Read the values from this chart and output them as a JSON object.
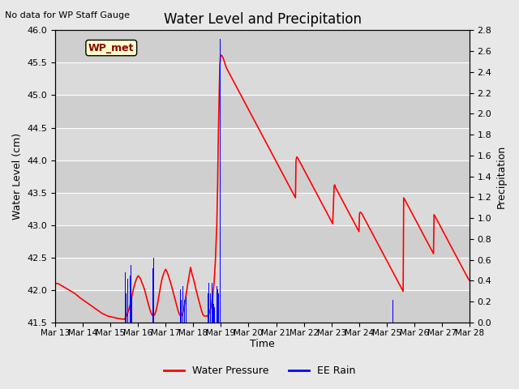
{
  "title": "Water Level and Precipitation",
  "top_left_text": "No data for WP Staff Gauge",
  "ylabel_left": "Water Level (cm)",
  "ylabel_right": "Precipitation",
  "xlabel": "Time",
  "ylim_left": [
    41.5,
    46.0
  ],
  "ylim_right": [
    0.0,
    2.8
  ],
  "yticks_left": [
    41.5,
    42.0,
    42.5,
    43.0,
    43.5,
    44.0,
    44.5,
    45.0,
    45.5,
    46.0
  ],
  "yticks_right": [
    0.0,
    0.2,
    0.4,
    0.6,
    0.8,
    1.0,
    1.2,
    1.4,
    1.6,
    1.8,
    2.0,
    2.2,
    2.4,
    2.6,
    2.8
  ],
  "fig_bg_color": "#e8e8e8",
  "plot_bg_color": "#d4d4d4",
  "legend_label_wp": "Water Pressure",
  "legend_label_rain": "EE Rain",
  "legend_box_color": "#ffffcc",
  "annotation_label": "WP_met",
  "annotation_color": "#8b0000",
  "x_tick_labels": [
    "Mar 13",
    "Mar 14",
    "Mar 15",
    "Mar 16",
    "Mar 17",
    "Mar 18",
    "Mar 19",
    "Mar 20",
    "Mar 21",
    "Mar 22",
    "Mar 23",
    "Mar 24",
    "Mar 25",
    "Mar 26",
    "Mar 27",
    "Mar 28"
  ],
  "x_range": [
    0,
    15
  ],
  "water_pressure": [
    [
      0.0,
      42.1
    ],
    [
      0.1,
      42.1
    ],
    [
      0.3,
      42.05
    ],
    [
      0.5,
      42.0
    ],
    [
      0.7,
      41.95
    ],
    [
      0.9,
      41.88
    ],
    [
      1.1,
      41.82
    ],
    [
      1.3,
      41.76
    ],
    [
      1.5,
      41.7
    ],
    [
      1.7,
      41.64
    ],
    [
      1.9,
      41.6
    ],
    [
      2.1,
      41.58
    ],
    [
      2.3,
      41.56
    ],
    [
      2.5,
      41.55
    ],
    [
      2.55,
      41.58
    ],
    [
      2.6,
      41.62
    ],
    [
      2.65,
      41.68
    ],
    [
      2.7,
      41.75
    ],
    [
      2.75,
      41.85
    ],
    [
      2.8,
      41.96
    ],
    [
      2.85,
      42.05
    ],
    [
      2.9,
      42.12
    ],
    [
      2.95,
      42.18
    ],
    [
      3.0,
      42.22
    ],
    [
      3.05,
      42.2
    ],
    [
      3.1,
      42.16
    ],
    [
      3.15,
      42.1
    ],
    [
      3.2,
      42.05
    ],
    [
      3.25,
      41.98
    ],
    [
      3.3,
      41.9
    ],
    [
      3.35,
      41.82
    ],
    [
      3.4,
      41.74
    ],
    [
      3.45,
      41.67
    ],
    [
      3.5,
      41.62
    ],
    [
      3.55,
      41.6
    ],
    [
      3.6,
      41.62
    ],
    [
      3.65,
      41.68
    ],
    [
      3.7,
      41.78
    ],
    [
      3.75,
      41.9
    ],
    [
      3.8,
      42.02
    ],
    [
      3.85,
      42.14
    ],
    [
      3.9,
      42.22
    ],
    [
      3.95,
      42.28
    ],
    [
      4.0,
      42.32
    ],
    [
      4.05,
      42.28
    ],
    [
      4.1,
      42.22
    ],
    [
      4.15,
      42.15
    ],
    [
      4.2,
      42.08
    ],
    [
      4.25,
      42.0
    ],
    [
      4.3,
      41.92
    ],
    [
      4.35,
      41.84
    ],
    [
      4.4,
      41.76
    ],
    [
      4.45,
      41.68
    ],
    [
      4.5,
      41.62
    ],
    [
      4.55,
      41.6
    ],
    [
      4.6,
      41.62
    ],
    [
      4.65,
      41.7
    ],
    [
      4.7,
      41.82
    ],
    [
      4.75,
      41.96
    ],
    [
      4.8,
      42.1
    ],
    [
      4.85,
      42.22
    ],
    [
      4.88,
      42.3
    ],
    [
      4.9,
      42.35
    ],
    [
      4.92,
      42.32
    ],
    [
      4.95,
      42.25
    ],
    [
      5.0,
      42.18
    ],
    [
      5.05,
      42.1
    ],
    [
      5.1,
      42.0
    ],
    [
      5.15,
      41.92
    ],
    [
      5.2,
      41.84
    ],
    [
      5.25,
      41.76
    ],
    [
      5.3,
      41.68
    ],
    [
      5.35,
      41.62
    ],
    [
      5.4,
      41.6
    ],
    [
      5.45,
      41.6
    ],
    [
      5.5,
      41.6
    ],
    [
      5.55,
      41.62
    ],
    [
      5.6,
      41.67
    ],
    [
      5.65,
      41.76
    ],
    [
      5.7,
      41.9
    ],
    [
      5.75,
      42.1
    ],
    [
      5.8,
      42.45
    ],
    [
      5.85,
      43.0
    ],
    [
      5.88,
      43.6
    ],
    [
      5.9,
      44.2
    ],
    [
      5.92,
      44.7
    ],
    [
      5.94,
      45.1
    ],
    [
      5.96,
      45.45
    ],
    [
      5.98,
      45.58
    ],
    [
      6.0,
      45.62
    ],
    [
      6.05,
      45.6
    ],
    [
      6.1,
      45.55
    ],
    [
      6.15,
      45.48
    ],
    [
      6.2,
      45.42
    ],
    [
      6.25,
      45.38
    ],
    [
      6.3,
      45.34
    ],
    [
      6.35,
      45.3
    ],
    [
      6.4,
      45.26
    ],
    [
      6.45,
      45.22
    ],
    [
      6.5,
      45.18
    ],
    [
      6.55,
      45.14
    ],
    [
      6.6,
      45.1
    ],
    [
      6.65,
      45.06
    ],
    [
      6.7,
      45.02
    ],
    [
      6.75,
      44.98
    ],
    [
      6.8,
      44.94
    ],
    [
      6.85,
      44.9
    ],
    [
      6.9,
      44.86
    ],
    [
      6.95,
      44.82
    ],
    [
      7.0,
      44.78
    ],
    [
      7.05,
      44.74
    ],
    [
      7.1,
      44.7
    ],
    [
      7.15,
      44.66
    ],
    [
      7.2,
      44.62
    ],
    [
      7.25,
      44.58
    ],
    [
      7.3,
      44.54
    ],
    [
      7.35,
      44.5
    ],
    [
      7.4,
      44.46
    ],
    [
      7.45,
      44.42
    ],
    [
      7.5,
      44.38
    ],
    [
      7.55,
      44.34
    ],
    [
      7.6,
      44.3
    ],
    [
      7.65,
      44.26
    ],
    [
      7.7,
      44.22
    ],
    [
      7.75,
      44.18
    ],
    [
      7.8,
      44.14
    ],
    [
      7.85,
      44.1
    ],
    [
      7.9,
      44.06
    ],
    [
      7.95,
      44.02
    ],
    [
      8.0,
      43.98
    ],
    [
      8.05,
      43.94
    ],
    [
      8.1,
      43.9
    ],
    [
      8.15,
      43.86
    ],
    [
      8.2,
      43.82
    ],
    [
      8.25,
      43.78
    ],
    [
      8.3,
      43.74
    ],
    [
      8.35,
      43.7
    ],
    [
      8.4,
      43.66
    ],
    [
      8.45,
      43.62
    ],
    [
      8.5,
      43.58
    ],
    [
      8.55,
      43.54
    ],
    [
      8.6,
      43.5
    ],
    [
      8.65,
      43.46
    ],
    [
      8.7,
      43.42
    ],
    [
      8.72,
      44.0
    ],
    [
      8.75,
      44.05
    ],
    [
      8.8,
      44.02
    ],
    [
      8.85,
      43.98
    ],
    [
      8.9,
      43.94
    ],
    [
      8.95,
      43.9
    ],
    [
      9.0,
      43.86
    ],
    [
      9.05,
      43.82
    ],
    [
      9.1,
      43.78
    ],
    [
      9.15,
      43.74
    ],
    [
      9.2,
      43.7
    ],
    [
      9.25,
      43.66
    ],
    [
      9.3,
      43.62
    ],
    [
      9.35,
      43.58
    ],
    [
      9.4,
      43.54
    ],
    [
      9.45,
      43.5
    ],
    [
      9.5,
      43.46
    ],
    [
      9.55,
      43.42
    ],
    [
      9.6,
      43.38
    ],
    [
      9.65,
      43.34
    ],
    [
      9.7,
      43.3
    ],
    [
      9.75,
      43.26
    ],
    [
      9.8,
      43.22
    ],
    [
      9.85,
      43.18
    ],
    [
      9.9,
      43.14
    ],
    [
      9.95,
      43.1
    ],
    [
      10.0,
      43.06
    ],
    [
      10.05,
      43.02
    ],
    [
      10.1,
      43.6
    ],
    [
      10.12,
      43.62
    ],
    [
      10.15,
      43.58
    ],
    [
      10.2,
      43.54
    ],
    [
      10.25,
      43.5
    ],
    [
      10.3,
      43.46
    ],
    [
      10.35,
      43.42
    ],
    [
      10.4,
      43.38
    ],
    [
      10.45,
      43.34
    ],
    [
      10.5,
      43.3
    ],
    [
      10.55,
      43.26
    ],
    [
      10.6,
      43.22
    ],
    [
      10.65,
      43.18
    ],
    [
      10.7,
      43.14
    ],
    [
      10.75,
      43.1
    ],
    [
      10.8,
      43.06
    ],
    [
      10.85,
      43.02
    ],
    [
      10.9,
      42.98
    ],
    [
      10.95,
      42.94
    ],
    [
      11.0,
      42.9
    ],
    [
      11.02,
      43.18
    ],
    [
      11.05,
      43.2
    ],
    [
      11.1,
      43.18
    ],
    [
      11.15,
      43.14
    ],
    [
      11.2,
      43.1
    ],
    [
      11.25,
      43.06
    ],
    [
      11.3,
      43.02
    ],
    [
      11.35,
      42.98
    ],
    [
      11.4,
      42.94
    ],
    [
      11.45,
      42.9
    ],
    [
      11.5,
      42.86
    ],
    [
      11.55,
      42.82
    ],
    [
      11.6,
      42.78
    ],
    [
      11.65,
      42.74
    ],
    [
      11.7,
      42.7
    ],
    [
      11.75,
      42.66
    ],
    [
      11.8,
      42.62
    ],
    [
      11.85,
      42.58
    ],
    [
      11.9,
      42.54
    ],
    [
      11.95,
      42.5
    ],
    [
      12.0,
      42.46
    ],
    [
      12.05,
      42.42
    ],
    [
      12.1,
      42.38
    ],
    [
      12.15,
      42.34
    ],
    [
      12.2,
      42.3
    ],
    [
      12.25,
      42.26
    ],
    [
      12.3,
      42.22
    ],
    [
      12.35,
      42.18
    ],
    [
      12.4,
      42.14
    ],
    [
      12.45,
      42.1
    ],
    [
      12.5,
      42.06
    ],
    [
      12.55,
      42.02
    ],
    [
      12.6,
      41.98
    ],
    [
      12.62,
      43.42
    ],
    [
      12.65,
      43.4
    ],
    [
      12.7,
      43.36
    ],
    [
      12.75,
      43.32
    ],
    [
      12.8,
      43.28
    ],
    [
      12.85,
      43.24
    ],
    [
      12.9,
      43.2
    ],
    [
      12.95,
      43.16
    ],
    [
      13.0,
      43.12
    ],
    [
      13.05,
      43.08
    ],
    [
      13.1,
      43.04
    ],
    [
      13.15,
      43.0
    ],
    [
      13.2,
      42.96
    ],
    [
      13.25,
      42.92
    ],
    [
      13.3,
      42.88
    ],
    [
      13.35,
      42.84
    ],
    [
      13.4,
      42.8
    ],
    [
      13.45,
      42.76
    ],
    [
      13.5,
      42.72
    ],
    [
      13.55,
      42.68
    ],
    [
      13.6,
      42.64
    ],
    [
      13.65,
      42.6
    ],
    [
      13.7,
      42.56
    ],
    [
      13.72,
      43.16
    ],
    [
      13.75,
      43.14
    ],
    [
      13.8,
      43.1
    ],
    [
      13.85,
      43.06
    ],
    [
      13.9,
      43.02
    ],
    [
      13.95,
      42.98
    ],
    [
      14.0,
      42.94
    ],
    [
      14.05,
      42.9
    ],
    [
      14.1,
      42.86
    ],
    [
      14.15,
      42.82
    ],
    [
      14.2,
      42.78
    ],
    [
      14.25,
      42.74
    ],
    [
      14.3,
      42.7
    ],
    [
      14.35,
      42.66
    ],
    [
      14.4,
      42.62
    ],
    [
      14.45,
      42.58
    ],
    [
      14.5,
      42.54
    ],
    [
      14.55,
      42.5
    ],
    [
      14.6,
      42.46
    ],
    [
      14.65,
      42.42
    ],
    [
      14.7,
      42.38
    ],
    [
      14.75,
      42.34
    ],
    [
      14.8,
      42.3
    ],
    [
      14.85,
      42.26
    ],
    [
      14.9,
      42.22
    ],
    [
      14.95,
      42.18
    ],
    [
      15.0,
      42.15
    ]
  ],
  "ee_rain": [
    [
      2.52,
      0.38
    ],
    [
      2.54,
      0.48
    ],
    [
      2.56,
      0.28
    ],
    [
      2.58,
      0.35
    ],
    [
      2.62,
      0.42
    ],
    [
      2.64,
      0.32
    ],
    [
      2.72,
      0.45
    ],
    [
      2.74,
      0.55
    ],
    [
      2.76,
      0.38
    ],
    [
      2.78,
      0.25
    ],
    [
      3.52,
      0.32
    ],
    [
      3.54,
      0.52
    ],
    [
      3.56,
      0.62
    ],
    [
      3.58,
      0.42
    ],
    [
      4.52,
      0.22
    ],
    [
      4.54,
      0.32
    ],
    [
      4.56,
      0.22
    ],
    [
      4.62,
      0.35
    ],
    [
      4.64,
      0.45
    ],
    [
      4.66,
      0.35
    ],
    [
      4.68,
      0.22
    ],
    [
      4.72,
      0.18
    ],
    [
      4.74,
      0.25
    ],
    [
      5.52,
      0.18
    ],
    [
      5.54,
      0.28
    ],
    [
      5.56,
      0.38
    ],
    [
      5.58,
      0.28
    ],
    [
      5.62,
      0.28
    ],
    [
      5.64,
      0.48
    ],
    [
      5.66,
      0.58
    ],
    [
      5.68,
      0.38
    ],
    [
      5.7,
      0.28
    ],
    [
      5.72,
      0.22
    ],
    [
      5.74,
      0.18
    ],
    [
      5.76,
      0.15
    ],
    [
      5.86,
      0.35
    ],
    [
      5.88,
      0.32
    ],
    [
      5.92,
      0.28
    ],
    [
      5.98,
      2.72
    ],
    [
      12.22,
      0.22
    ]
  ]
}
